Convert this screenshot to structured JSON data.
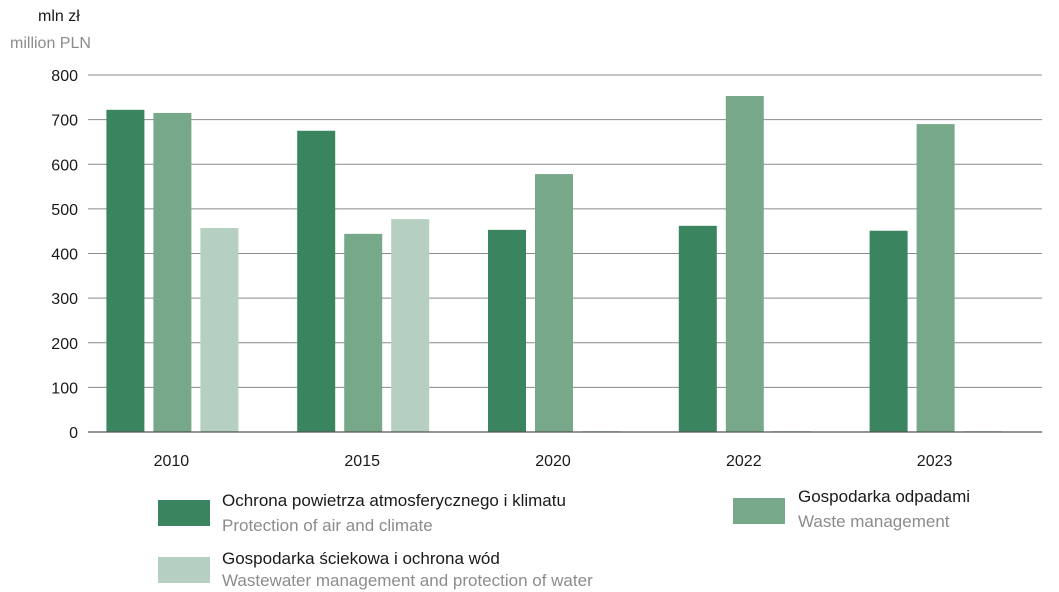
{
  "chart_data": {
    "type": "bar",
    "ylabel_pl": "mln zł",
    "ylabel_en": "million PLN",
    "ylim": [
      0,
      800
    ],
    "yticks": [
      0,
      100,
      200,
      300,
      400,
      500,
      600,
      700,
      800
    ],
    "grid": true,
    "categories": [
      "2010",
      "2015",
      "2020",
      "2022",
      "2023"
    ],
    "series": [
      {
        "name_pl": "Ochrona powietrza atmosferycznego i klimatu",
        "name_en": "Protection of air and climate",
        "color": "#3a8560",
        "values": [
          722,
          675,
          453,
          462,
          451
        ]
      },
      {
        "name_pl": "Gospodarka odpadami",
        "name_en": "Waste management",
        "color": "#78a88a",
        "values": [
          715,
          444,
          578,
          753,
          690
        ]
      },
      {
        "name_pl": "Gospodarka ściekowa i ochrona wód",
        "name_en": "Wastewater management and  protection of water",
        "color": "#b5cfc0",
        "values": [
          457,
          477,
          2,
          2,
          2
        ]
      }
    ],
    "legend_placement": "bottom"
  }
}
